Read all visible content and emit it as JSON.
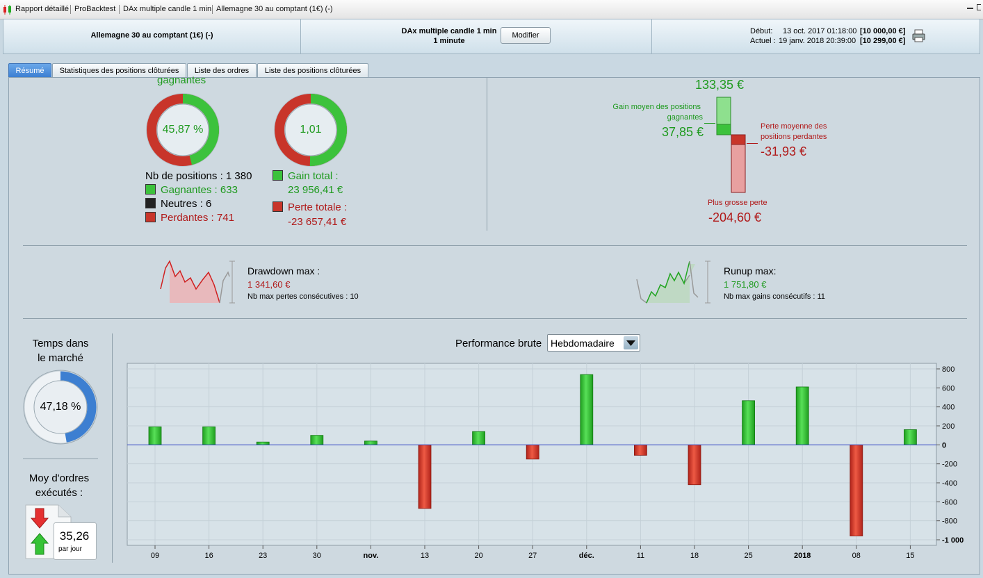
{
  "titlebar": {
    "items": [
      "Rapport détaillé",
      "ProBacktest",
      "DAx multiple candle 1 min",
      "Allemagne 30 au comptant (1€) (-)"
    ]
  },
  "header": {
    "instrument": "Allemagne 30 au comptant (1€) (-)",
    "system_name": "DAx multiple candle 1 min",
    "timeframe": "1 minute",
    "modify_label": "Modifier",
    "start_label": "Début:",
    "start_date": "13 oct. 2017 01:18:00",
    "start_capital": "[10 000,00 €]",
    "current_label": "Actuel :",
    "current_date": "19 janv. 2018 20:39:00",
    "current_capital": "[10 299,00 €]"
  },
  "tabs": [
    "Résumé",
    "Statistiques des positions clôturées",
    "Liste des ordres",
    "Liste des positions clôturées"
  ],
  "summary": {
    "cut_title": "gagnantes",
    "win_ratio": "45,87 %",
    "win_fraction": 0.4587,
    "gain_ratio": "1,01",
    "gain_fraction": 0.503,
    "nb_positions": "Nb de positions : 1 380",
    "winners": "Gagnantes : 633",
    "neutral": "Neutres : 6",
    "losers": "Perdantes : 741",
    "gain_total_label": "Gain total :",
    "gain_total": "23 956,41 €",
    "loss_total_label": "Perte totale :",
    "loss_total": "-23 657,41 €",
    "max_gain": "133,35 €",
    "avg_gain_label_1": "Gain moyen des positions",
    "avg_gain_label_2": "gagnantes",
    "avg_gain": "37,85 €",
    "avg_loss_label_1": "Perte moyenne des",
    "avg_loss_label_2": "positions perdantes",
    "avg_loss": "-31,93 €",
    "max_loss_label": "Plus grosse perte",
    "max_loss": "-204,60 €"
  },
  "drawdown": {
    "label": "Drawdown max :",
    "value": "1 341,60 €",
    "consec": "Nb max pertes consécutives : 10"
  },
  "runup": {
    "label": "Runup max:",
    "value": "1 751,80 €",
    "consec": "Nb max gains consécutifs : 11"
  },
  "market_time": {
    "title_1": "Temps dans",
    "title_2": "le marché",
    "value": "47,18 %",
    "fraction": 0.4718
  },
  "orders": {
    "title_1": "Moy d'ordres",
    "title_2": "exécutés :",
    "value": "35,26",
    "unit": "par jour"
  },
  "perf": {
    "title": "Performance brute",
    "period": "Hebdomadaire"
  },
  "colors": {
    "green": "#1e9a1e",
    "red": "#b01818",
    "blue": "#3d7fd1"
  },
  "chart_data": {
    "type": "bar",
    "categories": [
      "09",
      "16",
      "23",
      "30",
      "nov.",
      "13",
      "20",
      "27",
      "déc.",
      "11",
      "18",
      "25",
      "2018",
      "08",
      "15"
    ],
    "bold_categories": [
      "nov.",
      "déc.",
      "2018"
    ],
    "values": [
      190,
      190,
      30,
      100,
      40,
      -670,
      140,
      -150,
      740,
      -110,
      -420,
      465,
      610,
      -960,
      160
    ],
    "ylim": [
      -1000,
      800
    ],
    "yticks": [
      800,
      600,
      400,
      200,
      0,
      -200,
      -400,
      -600,
      -800,
      -1000
    ],
    "ytick_labels": [
      "800",
      "600",
      "400",
      "200",
      "0",
      "-200",
      "-400",
      "-600",
      "-800",
      "-1 000"
    ],
    "xlabel": "",
    "ylabel": "",
    "title": ""
  }
}
